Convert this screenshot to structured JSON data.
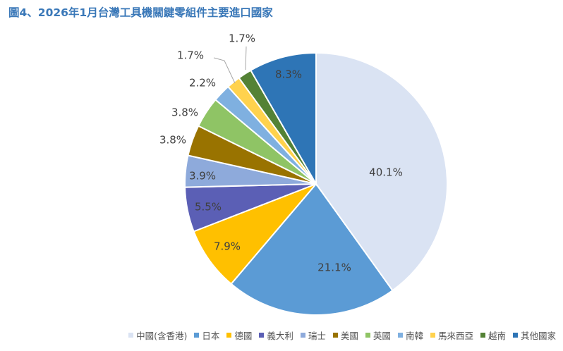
{
  "title": "圖4、2026年1月台灣工具機關鍵零組件主要進口國家",
  "chart_data": {
    "type": "pie",
    "start_angle_deg": 0,
    "direction": "clockwise",
    "legend_position": "bottom-right",
    "slices": [
      {
        "name": "中國(含香港)",
        "value": 40.1,
        "label": "40.1%",
        "color": "#dae3f3"
      },
      {
        "name": "日本",
        "value": 21.1,
        "label": "21.1%",
        "color": "#5b9bd5"
      },
      {
        "name": "德國",
        "value": 7.9,
        "label": "7.9%",
        "color": "#ffc000"
      },
      {
        "name": "義大利",
        "value": 5.5,
        "label": "5.5%",
        "color": "#5b5fb5"
      },
      {
        "name": "瑞士",
        "value": 3.9,
        "label": "3.9%",
        "color": "#8eaadb"
      },
      {
        "name": "美國",
        "value": 3.8,
        "label": "3.8%",
        "color": "#997300"
      },
      {
        "name": "英國",
        "value": 3.8,
        "label": "3.8%",
        "color": "#8fc465"
      },
      {
        "name": "南韓",
        "value": 2.2,
        "label": "2.2%",
        "color": "#7fb0e0"
      },
      {
        "name": "馬來西亞",
        "value": 1.7,
        "label": "1.7%",
        "color": "#ffd24d"
      },
      {
        "name": "越南",
        "value": 1.7,
        "label": "1.7%",
        "color": "#548235"
      },
      {
        "name": "其他國家",
        "value": 8.3,
        "label": "8.3%",
        "color": "#2e75b6"
      }
    ]
  }
}
